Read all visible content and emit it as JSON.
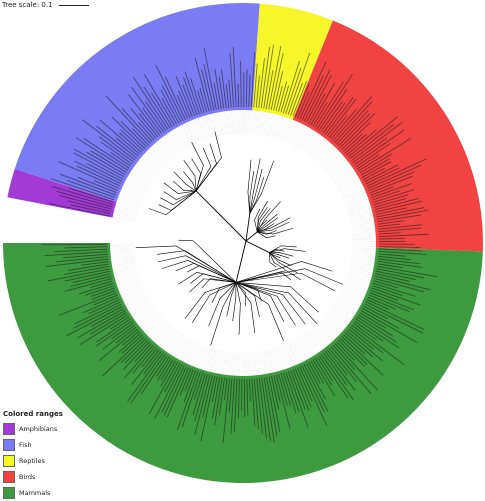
{
  "scale": {
    "label": "Tree scale: 0.1"
  },
  "legend": {
    "title": "Colored ranges",
    "items": [
      {
        "label": "Amphibians",
        "color": "#a23bd6"
      },
      {
        "label": "Fish",
        "color": "#7b7bf3"
      },
      {
        "label": "Reptiles",
        "color": "#f6f62a"
      },
      {
        "label": "Birds",
        "color": "#f24343"
      },
      {
        "label": "Mammals",
        "color": "#3e9a3e"
      }
    ]
  }
}
